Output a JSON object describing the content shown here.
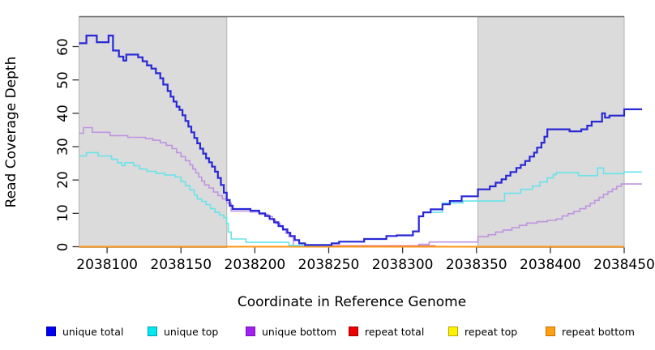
{
  "chart_data": {
    "type": "line",
    "step": true,
    "title": "",
    "xlabel": "Coordinate in Reference Genome",
    "ylabel": "Read Coverage Depth",
    "xlim": [
      2038081,
      2038450
    ],
    "draw_xmax": 2038462,
    "ylim": [
      0,
      69
    ],
    "grid": false,
    "x_tick_values": [
      2038100,
      2038150,
      2038200,
      2038250,
      2038300,
      2038350,
      2038400,
      2038450
    ],
    "x_tick_labels": [
      "2038100",
      "2038150",
      "2038200",
      "2038250",
      "2038300",
      "2038350",
      "2038400",
      "2038450"
    ],
    "y_tick_values": [
      0,
      10,
      20,
      30,
      40,
      50,
      60
    ],
    "y_tick_labels": [
      "0",
      "10",
      "20",
      "30",
      "40",
      "50",
      "60"
    ],
    "shaded_regions": [
      {
        "from": 2038081,
        "to": 2038181,
        "fill": "#dbdbdb",
        "border": "#b2b2b2"
      },
      {
        "from": 2038351,
        "to": 2038450,
        "fill": "#dbdbdb",
        "border": "#b2b2b2"
      }
    ],
    "top_border_color": "#6e6e6e",
    "series": [
      {
        "name": "unique total",
        "color": "#2828d6",
        "width": 2.2,
        "extend": true,
        "points": [
          [
            2038081,
            61
          ],
          [
            2038086,
            63.3
          ],
          [
            2038093,
            61.3
          ],
          [
            2038101,
            63.3
          ],
          [
            2038104,
            58.8
          ],
          [
            2038108,
            57
          ],
          [
            2038111,
            55.8
          ],
          [
            2038113,
            57.6
          ],
          [
            2038121,
            56.8
          ],
          [
            2038124,
            55.6
          ],
          [
            2038127,
            54.4
          ],
          [
            2038130,
            53.4
          ],
          [
            2038133,
            52
          ],
          [
            2038136,
            50.5
          ],
          [
            2038138,
            48.6
          ],
          [
            2038141,
            46.7
          ],
          [
            2038143,
            45
          ],
          [
            2038145,
            43.5
          ],
          [
            2038147,
            42
          ],
          [
            2038149,
            41
          ],
          [
            2038151,
            39.4
          ],
          [
            2038153,
            37.7
          ],
          [
            2038155,
            36
          ],
          [
            2038157,
            34.3
          ],
          [
            2038159,
            32.6
          ],
          [
            2038161,
            31
          ],
          [
            2038163,
            29.4
          ],
          [
            2038165,
            27.9
          ],
          [
            2038167,
            26.5
          ],
          [
            2038169,
            25.3
          ],
          [
            2038171,
            24
          ],
          [
            2038173,
            22.5
          ],
          [
            2038175,
            20.6
          ],
          [
            2038177,
            18.5
          ],
          [
            2038179,
            16.2
          ],
          [
            2038181,
            14
          ],
          [
            2038183,
            12.3
          ],
          [
            2038185,
            11.3
          ],
          [
            2038197,
            10.8
          ],
          [
            2038203,
            10
          ],
          [
            2038207,
            9.2
          ],
          [
            2038210,
            8.3
          ],
          [
            2038213,
            7.3
          ],
          [
            2038216,
            6.2
          ],
          [
            2038219,
            5.2
          ],
          [
            2038222,
            4.2
          ],
          [
            2038224,
            3.2
          ],
          [
            2038227,
            2
          ],
          [
            2038230,
            1
          ],
          [
            2038234,
            0.5
          ],
          [
            2038252,
            1
          ],
          [
            2038257,
            1.5
          ],
          [
            2038274,
            2.3
          ],
          [
            2038289,
            3.2
          ],
          [
            2038296,
            3.4
          ],
          [
            2038307,
            4.6
          ],
          [
            2038311,
            9.1
          ],
          [
            2038314,
            10.3
          ],
          [
            2038319,
            11.2
          ],
          [
            2038327,
            12.7
          ],
          [
            2038332,
            13.7
          ],
          [
            2038340,
            15.1
          ],
          [
            2038351,
            17.2
          ],
          [
            2038359,
            18.1
          ],
          [
            2038363,
            19.2
          ],
          [
            2038367,
            20.2
          ],
          [
            2038370,
            21.3
          ],
          [
            2038373,
            22.4
          ],
          [
            2038377,
            23.6
          ],
          [
            2038380,
            24.5
          ],
          [
            2038383,
            25.7
          ],
          [
            2038386,
            27
          ],
          [
            2038389,
            28.2
          ],
          [
            2038391,
            29.7
          ],
          [
            2038394,
            31.2
          ],
          [
            2038396,
            33
          ],
          [
            2038398,
            35.2
          ],
          [
            2038413,
            34.6
          ],
          [
            2038421,
            35.2
          ],
          [
            2038425,
            36.3
          ],
          [
            2038428,
            37.5
          ],
          [
            2038435,
            40
          ],
          [
            2038437,
            38.7
          ],
          [
            2038440,
            39.3
          ],
          [
            2038450,
            41.2
          ],
          [
            2038462,
            41.2
          ]
        ]
      },
      {
        "name": "unique top",
        "color": "#67e4e9",
        "width": 1.6,
        "extend": true,
        "points": [
          [
            2038081,
            27.2
          ],
          [
            2038086,
            28.2
          ],
          [
            2038094,
            27.2
          ],
          [
            2038103,
            26.2
          ],
          [
            2038107,
            25.2
          ],
          [
            2038110,
            24.3
          ],
          [
            2038112,
            25.2
          ],
          [
            2038118,
            24.3
          ],
          [
            2038122,
            23.3
          ],
          [
            2038127,
            22.6
          ],
          [
            2038133,
            22
          ],
          [
            2038139,
            21.5
          ],
          [
            2038146,
            20.9
          ],
          [
            2038150,
            19.5
          ],
          [
            2038153,
            18.3
          ],
          [
            2038156,
            17
          ],
          [
            2038159,
            15.5
          ],
          [
            2038161,
            14.3
          ],
          [
            2038164,
            13.6
          ],
          [
            2038167,
            12.6
          ],
          [
            2038170,
            11.4
          ],
          [
            2038173,
            10.3
          ],
          [
            2038176,
            9.5
          ],
          [
            2038179,
            8.7
          ],
          [
            2038181,
            7
          ],
          [
            2038182,
            4.4
          ],
          [
            2038184,
            2.3
          ],
          [
            2038194,
            1.3
          ],
          [
            2038223,
            0.4
          ],
          [
            2038252,
            1
          ],
          [
            2038257,
            1.5
          ],
          [
            2038274,
            2.3
          ],
          [
            2038289,
            3.2
          ],
          [
            2038296,
            3.4
          ],
          [
            2038307,
            4.6
          ],
          [
            2038311,
            9.1
          ],
          [
            2038314,
            10.3
          ],
          [
            2038327,
            13.1
          ],
          [
            2038341,
            13.7
          ],
          [
            2038369,
            16
          ],
          [
            2038380,
            17.2
          ],
          [
            2038388,
            18.2
          ],
          [
            2038393,
            19.4
          ],
          [
            2038398,
            20.6
          ],
          [
            2038402,
            21.6
          ],
          [
            2038404,
            22.2
          ],
          [
            2038419,
            21.3
          ],
          [
            2038432,
            23.6
          ],
          [
            2038436,
            21.9
          ],
          [
            2038450,
            22.4
          ],
          [
            2038462,
            22.4
          ]
        ]
      },
      {
        "name": "unique bottom",
        "color": "#be93e0",
        "width": 1.6,
        "extend": true,
        "points": [
          [
            2038081,
            34
          ],
          [
            2038084,
            35.7
          ],
          [
            2038090,
            34.3
          ],
          [
            2038102,
            33.3
          ],
          [
            2038114,
            32.8
          ],
          [
            2038126,
            32.4
          ],
          [
            2038131,
            31.9
          ],
          [
            2038136,
            31.2
          ],
          [
            2038140,
            30.4
          ],
          [
            2038144,
            29.4
          ],
          [
            2038147,
            28.2
          ],
          [
            2038150,
            27
          ],
          [
            2038153,
            25.8
          ],
          [
            2038156,
            24.5
          ],
          [
            2038158,
            23.3
          ],
          [
            2038160,
            22.1
          ],
          [
            2038162,
            20.9
          ],
          [
            2038164,
            19.7
          ],
          [
            2038166,
            18.5
          ],
          [
            2038169,
            17.6
          ],
          [
            2038172,
            16.4
          ],
          [
            2038175,
            15.3
          ],
          [
            2038178,
            14.3
          ],
          [
            2038181,
            13.1
          ],
          [
            2038184,
            10.7
          ],
          [
            2038197,
            10.4
          ],
          [
            2038203,
            9.7
          ],
          [
            2038209,
            9
          ],
          [
            2038212,
            8
          ],
          [
            2038214,
            7
          ],
          [
            2038217,
            6
          ],
          [
            2038219,
            5
          ],
          [
            2038221,
            4
          ],
          [
            2038223,
            3
          ],
          [
            2038226,
            0
          ],
          [
            2038311,
            0.7
          ],
          [
            2038318,
            1.4
          ],
          [
            2038351,
            3
          ],
          [
            2038358,
            3.6
          ],
          [
            2038363,
            4.4
          ],
          [
            2038368,
            5
          ],
          [
            2038374,
            5.7
          ],
          [
            2038379,
            6.4
          ],
          [
            2038384,
            7.1
          ],
          [
            2038391,
            7.5
          ],
          [
            2038398,
            7.9
          ],
          [
            2038404,
            8.3
          ],
          [
            2038408,
            9.2
          ],
          [
            2038412,
            9.9
          ],
          [
            2038416,
            10.6
          ],
          [
            2038420,
            11.4
          ],
          [
            2038424,
            12.2
          ],
          [
            2038427,
            13
          ],
          [
            2038430,
            13.9
          ],
          [
            2038433,
            14.8
          ],
          [
            2038436,
            15.7
          ],
          [
            2038439,
            16.5
          ],
          [
            2038442,
            17.3
          ],
          [
            2038445,
            18.1
          ],
          [
            2038448,
            18.8
          ],
          [
            2038462,
            18.8
          ]
        ]
      },
      {
        "name": "repeat total",
        "color": "#d6567e",
        "width": 1.4,
        "extend": false,
        "points": [
          [
            2038081,
            0
          ],
          [
            2038226,
            0.25
          ],
          [
            2038322,
            0
          ],
          [
            2038450,
            0
          ]
        ]
      },
      {
        "name": "repeat top",
        "color": "#f5e500",
        "width": 1.4,
        "extend": false,
        "points": [
          [
            2038081,
            0
          ],
          [
            2038450,
            0
          ]
        ]
      },
      {
        "name": "repeat bottom",
        "color": "#ff9716",
        "width": 2,
        "extend": false,
        "points": [
          [
            2038081,
            0
          ],
          [
            2038450,
            0
          ]
        ]
      }
    ],
    "draw_order": [
      4,
      2,
      3,
      5,
      1,
      0
    ],
    "legend_position": "bottom",
    "legend": [
      {
        "label": "unique total",
        "fill": "#0000f5",
        "border": "#0000a8"
      },
      {
        "label": "unique top",
        "fill": "#00e8f0",
        "border": "#009fb0"
      },
      {
        "label": "unique bottom",
        "fill": "#a020f0",
        "border": "#7611b5"
      },
      {
        "label": "repeat total",
        "fill": "#ee0000",
        "border": "#990000"
      },
      {
        "label": "repeat top",
        "fill": "#fff200",
        "border": "#b8a800"
      },
      {
        "label": "repeat bottom",
        "fill": "#ffa013",
        "border": "#c07000"
      }
    ]
  }
}
